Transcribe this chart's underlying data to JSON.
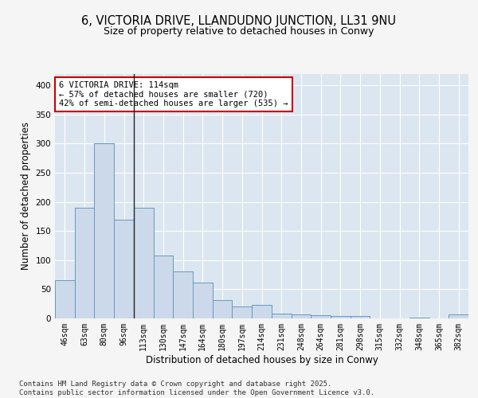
{
  "title_line1": "6, VICTORIA DRIVE, LLANDUDNO JUNCTION, LL31 9NU",
  "title_line2": "Size of property relative to detached houses in Conwy",
  "xlabel": "Distribution of detached houses by size in Conwy",
  "ylabel": "Number of detached properties",
  "categories": [
    "46sqm",
    "63sqm",
    "80sqm",
    "96sqm",
    "113sqm",
    "130sqm",
    "147sqm",
    "164sqm",
    "180sqm",
    "197sqm",
    "214sqm",
    "231sqm",
    "248sqm",
    "264sqm",
    "281sqm",
    "298sqm",
    "315sqm",
    "332sqm",
    "348sqm",
    "365sqm",
    "382sqm"
  ],
  "values": [
    65,
    190,
    300,
    170,
    190,
    108,
    80,
    62,
    32,
    20,
    23,
    8,
    7,
    5,
    4,
    4,
    0,
    0,
    2,
    0,
    7
  ],
  "bar_color": "#ccd9ea",
  "bar_edge_color": "#6699bb",
  "vline_index": 3.5,
  "vline_color": "#222222",
  "annotation_text": "6 VICTORIA DRIVE: 114sqm\n← 57% of detached houses are smaller (720)\n42% of semi-detached houses are larger (535) →",
  "annotation_box_facecolor": "#ffffff",
  "annotation_box_edgecolor": "#cc0000",
  "fig_facecolor": "#f5f5f5",
  "plot_bg_color": "#dce6f0",
  "ylim": [
    0,
    420
  ],
  "yticks": [
    0,
    50,
    100,
    150,
    200,
    250,
    300,
    350,
    400
  ],
  "footer_text": "Contains HM Land Registry data © Crown copyright and database right 2025.\nContains public sector information licensed under the Open Government Licence v3.0."
}
